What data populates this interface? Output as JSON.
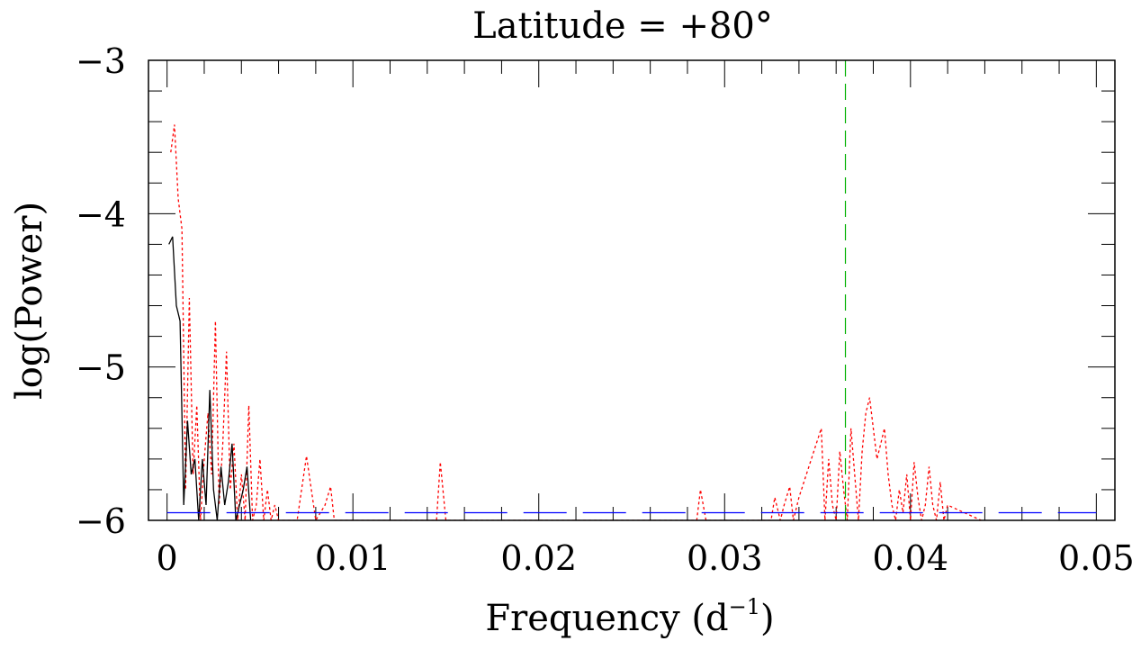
{
  "chart_data": {
    "type": "line",
    "title": "Latitude = +80°",
    "xlabel": "Frequency (d",
    "xlabel_sup": "−1",
    "xlabel_end": ")",
    "ylabel": "log(Power)",
    "xlim": [
      -0.001,
      0.051
    ],
    "ylim": [
      -6,
      -3
    ],
    "xticks": [
      0,
      0.01,
      0.02,
      0.03,
      0.04,
      0.05
    ],
    "xtick_labels": [
      "0",
      "0.01",
      "0.02",
      "0.03",
      "0.04",
      "0.05"
    ],
    "yticks": [
      -6,
      -5,
      -4,
      -3
    ],
    "ytick_labels": [
      "−6",
      "−5",
      "−4",
      "−3"
    ],
    "grid": false,
    "series": [
      {
        "style": "dotted",
        "color": "#ff0000",
        "x": [
          0.0002,
          0.0004,
          0.0006,
          0.0008,
          0.001,
          0.0012,
          0.0014,
          0.0016,
          0.0018,
          0.002,
          0.0022,
          0.0024,
          0.0026,
          0.0028,
          0.003,
          0.0032,
          0.0034,
          0.0036,
          0.0038,
          0.004,
          0.0042,
          0.0044,
          0.0046,
          0.0048,
          0.005,
          0.0052,
          0.0054,
          0.0056,
          0.0058,
          0.006,
          0.007,
          0.0075,
          0.008,
          0.0085,
          0.0088,
          0.009,
          0.012,
          0.0145,
          0.0147,
          0.015,
          0.0155,
          0.0245,
          0.0285,
          0.0287,
          0.029,
          0.0325,
          0.0327,
          0.033,
          0.0332,
          0.0335,
          0.0337,
          0.034,
          0.0352,
          0.0354,
          0.0356,
          0.0358,
          0.036,
          0.0362,
          0.0364,
          0.0366,
          0.0368,
          0.037,
          0.0372,
          0.0374,
          0.0376,
          0.0378,
          0.038,
          0.0382,
          0.0384,
          0.0386,
          0.0388,
          0.039,
          0.0392,
          0.0394,
          0.0396,
          0.0398,
          0.04,
          0.0402,
          0.0404,
          0.0406,
          0.0408,
          0.041,
          0.0412,
          0.0414,
          0.0416,
          0.0418,
          0.042,
          0.0438
        ],
        "y": [
          -3.6,
          -3.42,
          -3.9,
          -4.1,
          -5.8,
          -4.55,
          -5.7,
          -5.25,
          -6,
          -5.6,
          -5.3,
          -5.7,
          -4.7,
          -5.9,
          -5.5,
          -4.9,
          -5.8,
          -5.5,
          -6,
          -5.7,
          -6,
          -5.25,
          -6,
          -5.9,
          -5.6,
          -6,
          -5.8,
          -6,
          -5.9,
          -6,
          -6,
          -5.58,
          -6,
          -5.9,
          -5.78,
          -6,
          -6,
          -6,
          -5.62,
          -6,
          -6,
          -6,
          -6,
          -5.8,
          -6,
          -6,
          -5.85,
          -6,
          -5.9,
          -5.78,
          -6,
          -5.85,
          -5.4,
          -6,
          -5.6,
          -5.9,
          -6,
          -5.55,
          -5.8,
          -6,
          -5.4,
          -5.7,
          -6,
          -5.55,
          -5.3,
          -5.2,
          -5.4,
          -5.6,
          -5.5,
          -5.4,
          -5.7,
          -5.9,
          -6,
          -5.8,
          -5.95,
          -5.7,
          -6,
          -5.62,
          -5.85,
          -6,
          -5.9,
          -5.65,
          -5.9,
          -6,
          -5.75,
          -6,
          -5.9,
          -6
        ]
      },
      {
        "style": "solid",
        "color": "#000000",
        "x": [
          0.0001,
          0.0003,
          0.0005,
          0.0007,
          0.0009,
          0.0011,
          0.0013,
          0.0015,
          0.0017,
          0.0019,
          0.0021,
          0.0023,
          0.0025,
          0.0027,
          0.0029,
          0.0031,
          0.0033,
          0.0035,
          0.0037,
          0.0039,
          0.0041,
          0.0043,
          0.0045
        ],
        "y": [
          -4.2,
          -4.15,
          -4.6,
          -4.7,
          -5.9,
          -5.35,
          -5.7,
          -5.6,
          -6,
          -5.6,
          -5.9,
          -5.15,
          -5.8,
          -6,
          -5.65,
          -5.9,
          -5.75,
          -5.5,
          -6,
          -5.9,
          -5.8,
          -5.65,
          -6
        ]
      },
      {
        "style": "dashed",
        "color": "#0000ff",
        "x": [
          0,
          0.05
        ],
        "y": [
          -5.95,
          -5.95
        ]
      }
    ],
    "vlines": [
      {
        "x": 0.0365,
        "style": "dashed",
        "color": "#00b000"
      }
    ]
  }
}
